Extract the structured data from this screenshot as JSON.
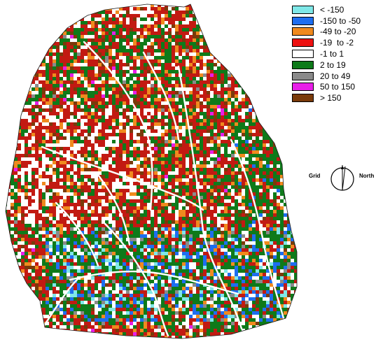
{
  "legend": {
    "items": [
      {
        "label": "< -150",
        "color": "#7fe8e8"
      },
      {
        "label": "-150 to -50",
        "color": "#1e6ef0"
      },
      {
        "label": "-49 to -20",
        "color": "#f08a1e"
      },
      {
        "label": "-19  to -2",
        "color": "#ee1111"
      },
      {
        "label": "-1 to 1",
        "color": "#ffffff"
      },
      {
        "label": "2 to 19",
        "color": "#0e7a1a"
      },
      {
        "label": "20 to 49",
        "color": "#8a8a8a"
      },
      {
        "label": "50 to 150",
        "color": "#e81ee8"
      },
      {
        "label": "> 150",
        "color": "#7a3a0a"
      }
    ]
  },
  "north_arrow": {
    "grid_label": "Grid",
    "north_label": "North"
  }
}
